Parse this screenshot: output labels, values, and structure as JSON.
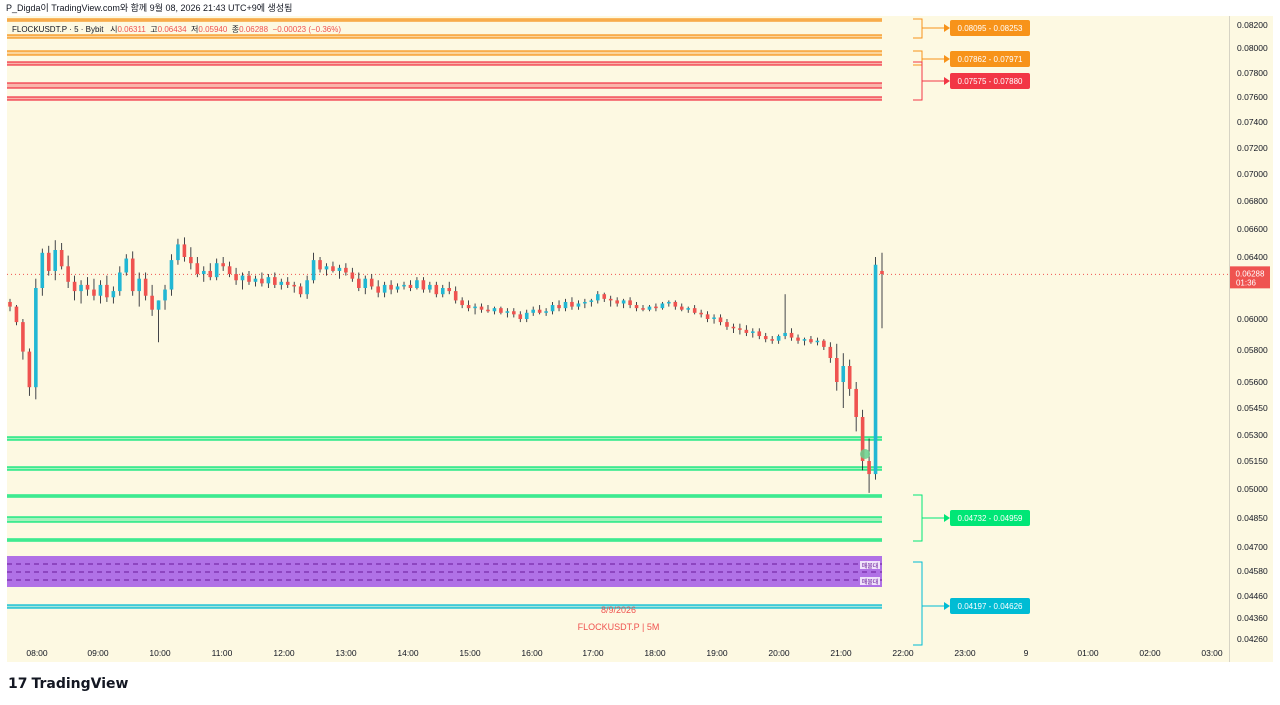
{
  "header": {
    "publish_line": "P_Digda이 TradingView.com와 함께 9월 08, 2026 21:43 UTC+9에 생성됨"
  },
  "legend": {
    "symbol": "FLOCKUSDT.P · 5 · Bybit",
    "open_label": "시",
    "open": "0.06311",
    "high_label": "고",
    "high": "0.06434",
    "low_label": "저",
    "low": "0.05940",
    "close_label": "종",
    "close": "0.06288",
    "change": "−0.00023 (−0.36%)"
  },
  "watermark": {
    "date": "8/9/2026",
    "symbol_tf": "FLOCKUSDT.P | 5M"
  },
  "footer": {
    "brand": "TradingView",
    "logo_mark": "17"
  },
  "colors": {
    "up": "#26a69a",
    "up_candle": "#22b7d4",
    "down": "#ef5350",
    "orange_zone": "#f7931a",
    "red_zone": "#f23645",
    "green_zone": "#00e676",
    "blue_zone": "#00bcd4",
    "purple_zone": "#9c27b0",
    "bg": "#fdf9e2"
  },
  "chart_data": {
    "type": "candlestick",
    "symbol": "FLOCKUSDT.P",
    "timeframe": "5",
    "exchange": "Bybit",
    "x_ticks": [
      "08:00",
      "09:00",
      "10:00",
      "11:00",
      "12:00",
      "13:00",
      "14:00",
      "15:00",
      "16:00",
      "17:00",
      "18:00",
      "19:00",
      "20:00",
      "21:00",
      "22:00",
      "23:00",
      "9",
      "01:00",
      "02:00",
      "03:00"
    ],
    "y_ticks": [
      "0.08200",
      "0.08000",
      "0.07800",
      "0.07600",
      "0.07400",
      "0.07200",
      "0.07000",
      "0.06800",
      "0.06600",
      "0.06400",
      "0.06000",
      "0.05800",
      "0.05600",
      "0.05450",
      "0.05300",
      "0.05150",
      "0.05000",
      "0.04850",
      "0.04700",
      "0.04580",
      "0.04460",
      "0.04360",
      "0.04260"
    ],
    "last_price": "0.06288",
    "countdown": "01:36",
    "zones": [
      {
        "label": "0.08095 - 0.08253",
        "color": "orange"
      },
      {
        "label": "0.07862 - 0.07971",
        "color": "orange"
      },
      {
        "label": "0.07575 - 0.07880",
        "color": "red"
      },
      {
        "label": "0.04732 - 0.04959",
        "color": "green"
      },
      {
        "label": "0.04197 - 0.04626",
        "color": "blue"
      }
    ],
    "purple_zone_labels": [
      "매물대",
      "매물대"
    ],
    "candles": [
      [
        0.0611,
        0.0613,
        0.0605,
        0.0608
      ],
      [
        0.0608,
        0.0609,
        0.0596,
        0.0598
      ],
      [
        0.0598,
        0.06,
        0.0574,
        0.0579
      ],
      [
        0.0579,
        0.0581,
        0.0552,
        0.0557
      ],
      [
        0.0557,
        0.0626,
        0.055,
        0.062
      ],
      [
        0.062,
        0.0646,
        0.0615,
        0.0643
      ],
      [
        0.0643,
        0.0648,
        0.0628,
        0.0631
      ],
      [
        0.0631,
        0.0652,
        0.0625,
        0.0645
      ],
      [
        0.0645,
        0.065,
        0.0632,
        0.0634
      ],
      [
        0.0634,
        0.0641,
        0.062,
        0.0624
      ],
      [
        0.0624,
        0.0628,
        0.0612,
        0.0618
      ],
      [
        0.0618,
        0.0625,
        0.061,
        0.0622
      ],
      [
        0.0622,
        0.0627,
        0.0615,
        0.0619
      ],
      [
        0.0619,
        0.0626,
        0.0612,
        0.0615
      ],
      [
        0.0615,
        0.0625,
        0.061,
        0.0622
      ],
      [
        0.0622,
        0.0628,
        0.0611,
        0.0614
      ],
      [
        0.0614,
        0.0621,
        0.061,
        0.0618
      ],
      [
        0.0618,
        0.0634,
        0.0615,
        0.063
      ],
      [
        0.063,
        0.0642,
        0.0628,
        0.0639
      ],
      [
        0.0639,
        0.0644,
        0.0615,
        0.0618
      ],
      [
        0.0618,
        0.063,
        0.0608,
        0.0626
      ],
      [
        0.0626,
        0.063,
        0.0612,
        0.0615
      ],
      [
        0.0615,
        0.0622,
        0.0602,
        0.0606
      ],
      [
        0.0606,
        0.0612,
        0.0585,
        0.0612
      ],
      [
        0.0612,
        0.0622,
        0.0606,
        0.0619
      ],
      [
        0.0619,
        0.0642,
        0.0615,
        0.0638
      ],
      [
        0.0638,
        0.0653,
        0.0635,
        0.0649
      ],
      [
        0.0649,
        0.0654,
        0.0637,
        0.064
      ],
      [
        0.064,
        0.0647,
        0.0632,
        0.0636
      ],
      [
        0.0636,
        0.064,
        0.0627,
        0.0629
      ],
      [
        0.0629,
        0.0634,
        0.0624,
        0.0631
      ],
      [
        0.0631,
        0.0636,
        0.0625,
        0.0627
      ],
      [
        0.0627,
        0.0639,
        0.0625,
        0.0636
      ],
      [
        0.0636,
        0.064,
        0.0631,
        0.0634
      ],
      [
        0.0634,
        0.0637,
        0.0627,
        0.0629
      ],
      [
        0.0629,
        0.0633,
        0.0622,
        0.0625
      ],
      [
        0.0625,
        0.063,
        0.0619,
        0.0628
      ],
      [
        0.0628,
        0.0631,
        0.0622,
        0.0624
      ],
      [
        0.0624,
        0.0628,
        0.0621,
        0.0626
      ],
      [
        0.0626,
        0.063,
        0.0621,
        0.0623
      ],
      [
        0.0623,
        0.0629,
        0.062,
        0.0627
      ],
      [
        0.0627,
        0.063,
        0.062,
        0.0622
      ],
      [
        0.0622,
        0.0626,
        0.0619,
        0.0624
      ],
      [
        0.0624,
        0.0627,
        0.062,
        0.0622
      ],
      [
        0.0622,
        0.0624,
        0.0617,
        0.0621
      ],
      [
        0.0621,
        0.0623,
        0.0614,
        0.0616
      ],
      [
        0.0616,
        0.0628,
        0.0613,
        0.0625
      ],
      [
        0.0625,
        0.0643,
        0.0623,
        0.0638
      ],
      [
        0.0638,
        0.064,
        0.063,
        0.0632
      ],
      [
        0.0632,
        0.0636,
        0.0628,
        0.0634
      ],
      [
        0.0634,
        0.0637,
        0.063,
        0.0631
      ],
      [
        0.0631,
        0.0635,
        0.0626,
        0.0633
      ],
      [
        0.0633,
        0.0636,
        0.0628,
        0.063
      ],
      [
        0.063,
        0.0633,
        0.0624,
        0.0626
      ],
      [
        0.0626,
        0.063,
        0.0618,
        0.062
      ],
      [
        0.062,
        0.0628,
        0.0616,
        0.0626
      ],
      [
        0.0626,
        0.0629,
        0.0619,
        0.0621
      ],
      [
        0.0621,
        0.0625,
        0.0614,
        0.0617
      ],
      [
        0.0617,
        0.0624,
        0.0614,
        0.0622
      ],
      [
        0.0622,
        0.0625,
        0.0616,
        0.0619
      ],
      [
        0.0619,
        0.0623,
        0.0617,
        0.0621
      ],
      [
        0.0621,
        0.0624,
        0.0619,
        0.0622
      ],
      [
        0.0622,
        0.0625,
        0.0618,
        0.062
      ],
      [
        0.062,
        0.0627,
        0.0619,
        0.0625
      ],
      [
        0.0625,
        0.0627,
        0.0617,
        0.0619
      ],
      [
        0.0619,
        0.0624,
        0.0617,
        0.0622
      ],
      [
        0.0622,
        0.0624,
        0.0614,
        0.0616
      ],
      [
        0.0616,
        0.0622,
        0.0614,
        0.062
      ],
      [
        0.062,
        0.0624,
        0.0616,
        0.0618
      ],
      [
        0.0618,
        0.0621,
        0.061,
        0.0612
      ],
      [
        0.0612,
        0.0614,
        0.0607,
        0.0609
      ],
      [
        0.0609,
        0.0612,
        0.0605,
        0.0607
      ],
      [
        0.0607,
        0.061,
        0.0603,
        0.0608
      ],
      [
        0.0608,
        0.061,
        0.0604,
        0.0606
      ],
      [
        0.0606,
        0.0609,
        0.0604,
        0.0605
      ],
      [
        0.0605,
        0.0608,
        0.0603,
        0.0607
      ],
      [
        0.0607,
        0.0608,
        0.0603,
        0.0604
      ],
      [
        0.0604,
        0.0607,
        0.0601,
        0.0605
      ],
      [
        0.0605,
        0.0607,
        0.0601,
        0.0603
      ],
      [
        0.0603,
        0.0605,
        0.0598,
        0.06
      ],
      [
        0.06,
        0.0606,
        0.0598,
        0.0604
      ],
      [
        0.0604,
        0.0608,
        0.0602,
        0.0606
      ],
      [
        0.0606,
        0.0609,
        0.0603,
        0.0604
      ],
      [
        0.0604,
        0.0607,
        0.0602,
        0.0605
      ],
      [
        0.0605,
        0.0611,
        0.0603,
        0.0609
      ],
      [
        0.0609,
        0.0612,
        0.0605,
        0.0607
      ],
      [
        0.0607,
        0.0613,
        0.0605,
        0.0611
      ],
      [
        0.0611,
        0.0614,
        0.0606,
        0.0608
      ],
      [
        0.0608,
        0.0612,
        0.0606,
        0.061
      ],
      [
        0.061,
        0.0613,
        0.0607,
        0.0611
      ],
      [
        0.0611,
        0.0613,
        0.0608,
        0.0612
      ],
      [
        0.0612,
        0.0618,
        0.061,
        0.0616
      ],
      [
        0.0616,
        0.0617,
        0.0611,
        0.0613
      ],
      [
        0.0613,
        0.0615,
        0.0608,
        0.0612
      ],
      [
        0.0612,
        0.0614,
        0.0608,
        0.061
      ],
      [
        0.061,
        0.0613,
        0.0607,
        0.0612
      ],
      [
        0.0612,
        0.0614,
        0.0607,
        0.0609
      ],
      [
        0.0609,
        0.0611,
        0.0605,
        0.0607
      ],
      [
        0.0607,
        0.0609,
        0.0605,
        0.0606
      ],
      [
        0.0606,
        0.0609,
        0.0605,
        0.0608
      ],
      [
        0.0608,
        0.061,
        0.0605,
        0.0607
      ],
      [
        0.0607,
        0.0611,
        0.0606,
        0.061
      ],
      [
        0.061,
        0.0612,
        0.0608,
        0.0611
      ],
      [
        0.0611,
        0.0612,
        0.0606,
        0.0608
      ],
      [
        0.0608,
        0.061,
        0.0605,
        0.0606
      ],
      [
        0.0606,
        0.0608,
        0.0604,
        0.0607
      ],
      [
        0.0607,
        0.0609,
        0.0603,
        0.0604
      ],
      [
        0.0604,
        0.0606,
        0.0601,
        0.0603
      ],
      [
        0.0603,
        0.0605,
        0.0598,
        0.06
      ],
      [
        0.06,
        0.0603,
        0.0597,
        0.0601
      ],
      [
        0.0601,
        0.0603,
        0.0596,
        0.0598
      ],
      [
        0.0598,
        0.06,
        0.0593,
        0.0595
      ],
      [
        0.0595,
        0.0597,
        0.0591,
        0.0594
      ],
      [
        0.0594,
        0.0597,
        0.059,
        0.0593
      ],
      [
        0.0593,
        0.0596,
        0.0589,
        0.0591
      ],
      [
        0.0591,
        0.0594,
        0.0588,
        0.0592
      ],
      [
        0.0592,
        0.0594,
        0.0587,
        0.0589
      ],
      [
        0.0589,
        0.0591,
        0.0585,
        0.0587
      ],
      [
        0.0587,
        0.0589,
        0.0584,
        0.0586
      ],
      [
        0.0586,
        0.059,
        0.0584,
        0.0589
      ],
      [
        0.0589,
        0.0616,
        0.0587,
        0.0591
      ],
      [
        0.0591,
        0.0594,
        0.0586,
        0.0588
      ],
      [
        0.0588,
        0.059,
        0.0584,
        0.0586
      ],
      [
        0.0586,
        0.0588,
        0.0583,
        0.0587
      ],
      [
        0.0587,
        0.0589,
        0.0584,
        0.0585
      ],
      [
        0.0585,
        0.0588,
        0.0583,
        0.0586
      ],
      [
        0.0586,
        0.0587,
        0.058,
        0.0582
      ],
      [
        0.0582,
        0.0585,
        0.0572,
        0.0575
      ],
      [
        0.0575,
        0.0584,
        0.0555,
        0.056
      ],
      [
        0.056,
        0.0578,
        0.0545,
        0.057
      ],
      [
        0.057,
        0.0574,
        0.0552,
        0.0556
      ],
      [
        0.0556,
        0.056,
        0.0532,
        0.054
      ],
      [
        0.054,
        0.0544,
        0.051,
        0.0515
      ],
      [
        0.0515,
        0.0528,
        0.0498,
        0.0508
      ],
      [
        0.0508,
        0.064,
        0.0505,
        0.0635
      ],
      [
        0.0631,
        0.0643,
        0.0594,
        0.0629
      ]
    ]
  }
}
